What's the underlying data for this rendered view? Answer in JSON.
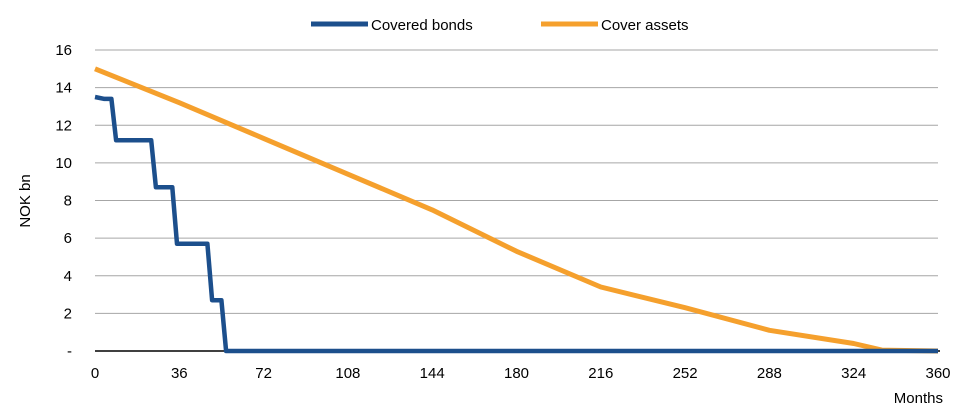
{
  "chart_data": {
    "type": "line",
    "title": "",
    "xlabel": "Months",
    "ylabel": "NOK bn",
    "xlim": [
      0,
      360
    ],
    "ylim": [
      0,
      16
    ],
    "x_ticks": [
      0,
      36,
      72,
      108,
      144,
      180,
      216,
      252,
      288,
      324,
      360
    ],
    "x_tick_labels": [
      "0",
      "36",
      "72",
      "108",
      "144",
      "180",
      "216",
      "252",
      "288",
      "324",
      "360"
    ],
    "y_ticks": [
      0,
      2,
      4,
      6,
      8,
      10,
      12,
      14,
      16
    ],
    "y_tick_labels": [
      "-",
      "2",
      "4",
      "6",
      "8",
      "10",
      "12",
      "14",
      "16"
    ],
    "grid": true,
    "legend_position": "top-center",
    "series": [
      {
        "name": "Covered bonds",
        "color": "#1c4f8c",
        "points": [
          [
            0,
            13.5
          ],
          [
            4,
            13.4
          ],
          [
            7,
            13.4
          ],
          [
            9,
            11.2
          ],
          [
            24,
            11.2
          ],
          [
            26,
            8.7
          ],
          [
            33,
            8.7
          ],
          [
            35,
            5.7
          ],
          [
            48,
            5.7
          ],
          [
            50,
            2.7
          ],
          [
            54,
            2.7
          ],
          [
            56,
            0
          ],
          [
            360,
            0
          ]
        ]
      },
      {
        "name": "Cover assets",
        "color": "#f5a02d",
        "points": [
          [
            0,
            15.0
          ],
          [
            36,
            13.2
          ],
          [
            72,
            11.3
          ],
          [
            108,
            9.4
          ],
          [
            144,
            7.5
          ],
          [
            180,
            5.3
          ],
          [
            216,
            3.4
          ],
          [
            252,
            2.3
          ],
          [
            288,
            1.1
          ],
          [
            324,
            0.4
          ],
          [
            336,
            0.05
          ],
          [
            360,
            0
          ]
        ]
      }
    ]
  }
}
